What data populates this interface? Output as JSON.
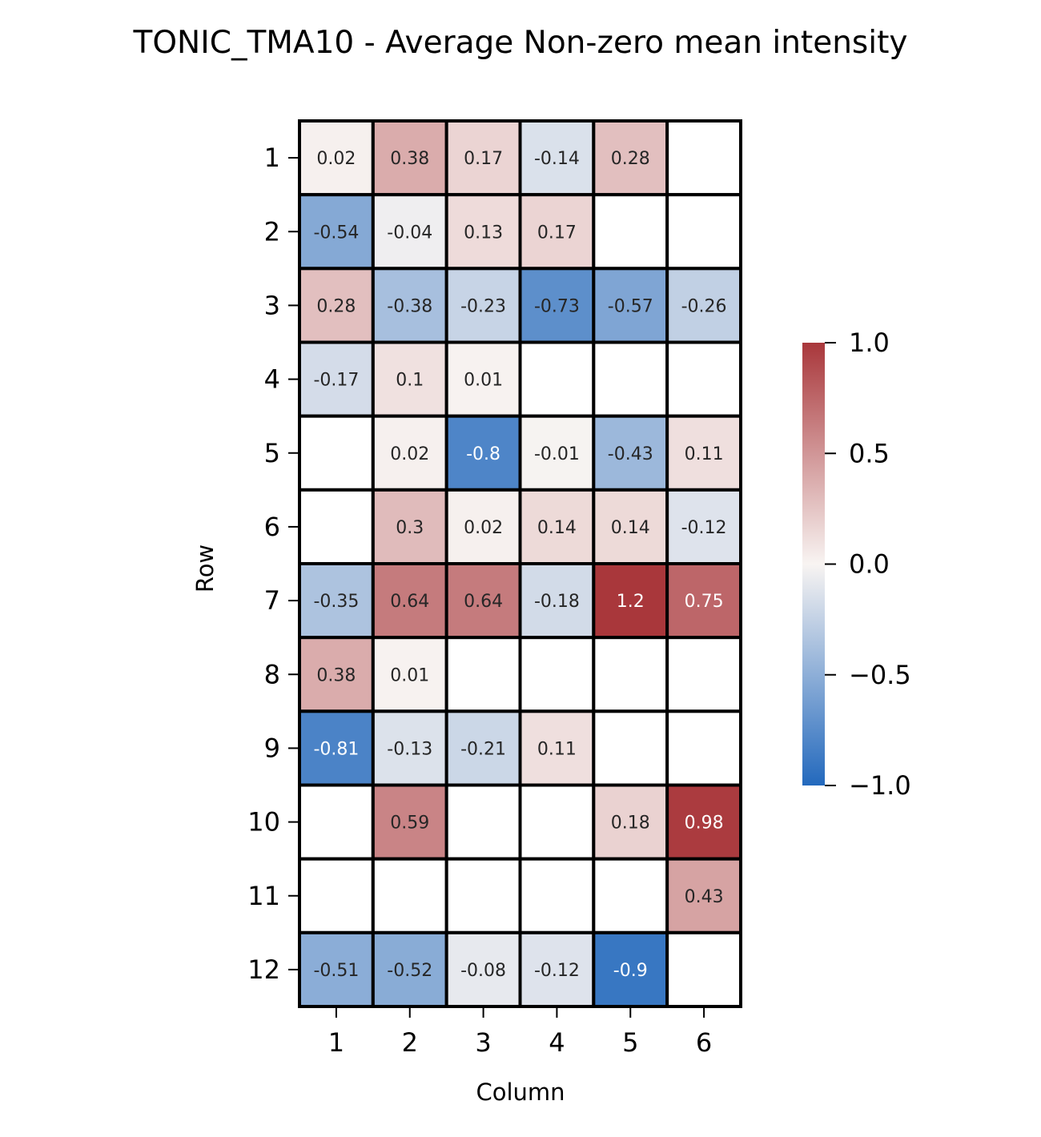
{
  "chart_data": {
    "type": "heatmap",
    "title": "TONIC_TMA10 - Average Non-zero mean intensity",
    "xlabel": "Column",
    "ylabel": "Row",
    "x_categories": [
      "1",
      "2",
      "3",
      "4",
      "5",
      "6"
    ],
    "y_categories": [
      "1",
      "2",
      "3",
      "4",
      "5",
      "6",
      "7",
      "8",
      "9",
      "10",
      "11",
      "12"
    ],
    "values": [
      [
        0.02,
        0.38,
        0.17,
        -0.14,
        0.28,
        null
      ],
      [
        -0.54,
        -0.04,
        0.13,
        0.17,
        null,
        null
      ],
      [
        0.28,
        -0.38,
        -0.23,
        -0.73,
        -0.57,
        -0.26
      ],
      [
        -0.17,
        0.1,
        0.01,
        null,
        null,
        null
      ],
      [
        null,
        0.02,
        -0.8,
        -0.01,
        -0.43,
        0.11
      ],
      [
        null,
        0.3,
        0.02,
        0.14,
        0.14,
        -0.12
      ],
      [
        -0.35,
        0.64,
        0.64,
        -0.18,
        1.2,
        0.75
      ],
      [
        0.38,
        0.01,
        null,
        null,
        null,
        null
      ],
      [
        -0.81,
        -0.13,
        -0.21,
        0.11,
        null,
        null
      ],
      [
        null,
        0.59,
        null,
        null,
        0.18,
        0.98
      ],
      [
        null,
        null,
        null,
        null,
        null,
        0.43
      ],
      [
        -0.51,
        -0.52,
        -0.08,
        -0.12,
        -0.9,
        null
      ]
    ],
    "color_scale": {
      "name": "vlag",
      "vmin": -1.0,
      "vmax": 1.0,
      "colors": [
        "#2369bd",
        "#f8f4f2",
        "#a9373b"
      ],
      "ticks": [
        "1.0",
        "0.5",
        "0.0",
        "−0.5",
        "−1.0"
      ],
      "tick_values": [
        1.0,
        0.5,
        0.0,
        -0.5,
        -1.0
      ]
    },
    "legend": "colorbar-right",
    "grid": false
  }
}
